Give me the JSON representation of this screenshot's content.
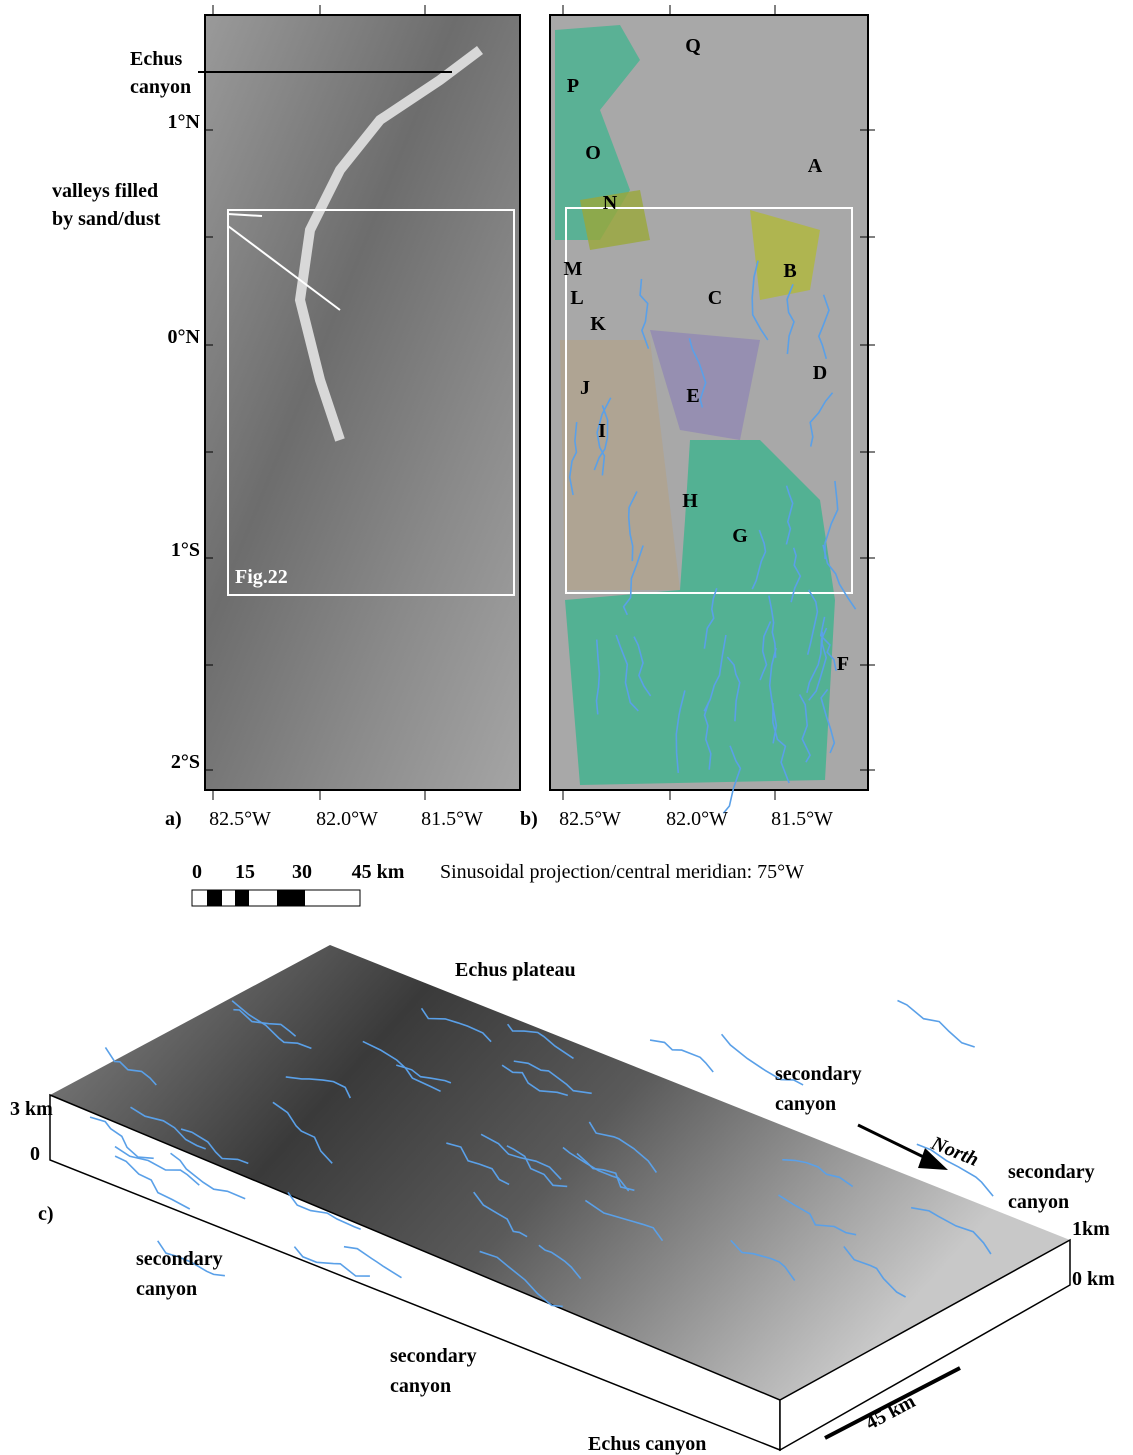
{
  "panel_a": {
    "label": "a)",
    "annotations": [
      {
        "lines": [
          "Echus",
          "canyon"
        ]
      },
      {
        "lines": [
          "valleys filled",
          "by sand/dust"
        ]
      }
    ],
    "box_label": "Fig.22"
  },
  "latitude_labels": [
    "1°N",
    "0°N",
    "1°S",
    "2°S"
  ],
  "longitude_labels": [
    "82.5°W",
    "82.0°W",
    "81.5°W"
  ],
  "panel_b": {
    "label": "b)",
    "regions": [
      "Q",
      "P",
      "O",
      "A",
      "N",
      "M",
      "B",
      "L",
      "C",
      "K",
      "D",
      "J",
      "E",
      "I",
      "H",
      "G",
      "F"
    ]
  },
  "scale_bar": {
    "ticks": [
      "0",
      "15",
      "30",
      "45 km"
    ],
    "projection": "Sinusoidal projection/central meridian: 75°W"
  },
  "panel_c": {
    "label": "c)",
    "plateau": "Echus plateau",
    "secondary_canyons": [
      [
        "secondary",
        "canyon"
      ],
      [
        "secondary",
        "canyon"
      ],
      [
        "secondary",
        "canyon"
      ],
      [
        "secondary",
        "canyon"
      ]
    ],
    "north": "North",
    "heights_left": [
      "3 km",
      "0"
    ],
    "heights_right": [
      "1km",
      "0 km"
    ],
    "distance": "45 km",
    "canyon": "Echus canyon"
  }
}
